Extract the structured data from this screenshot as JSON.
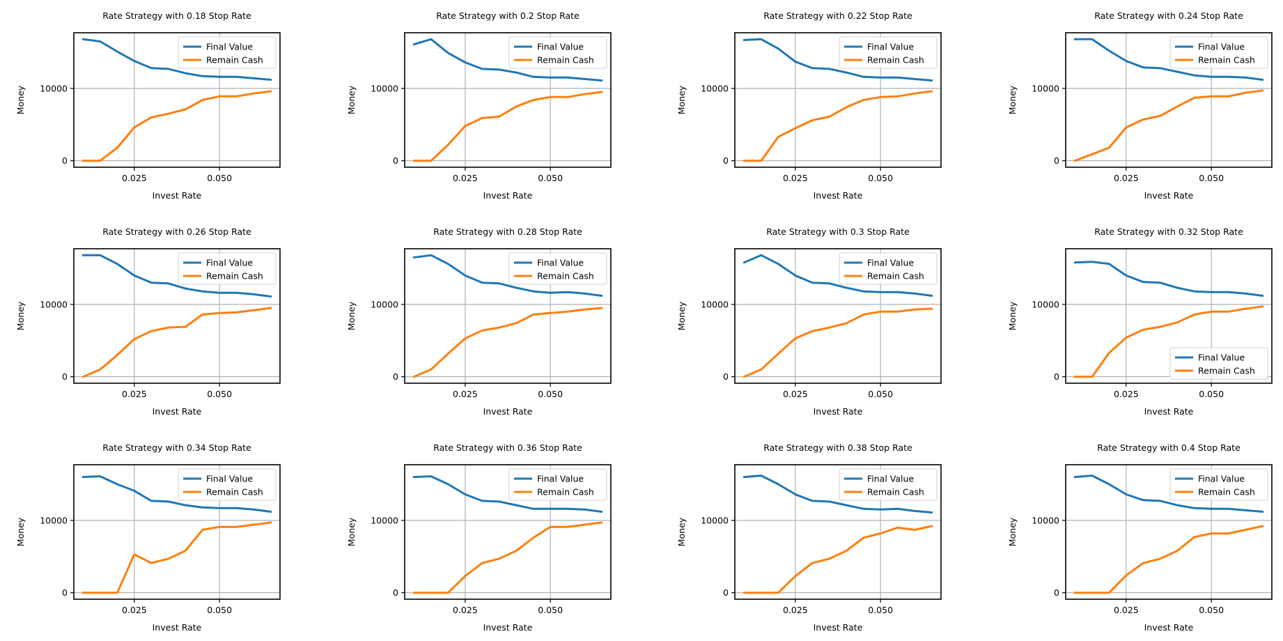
{
  "colors": {
    "final": "#1f77b4",
    "remain": "#ff7f0e",
    "grid": "#b0b0b0",
    "axis": "#000000"
  },
  "x": [
    0.01,
    0.015,
    0.02,
    0.025,
    0.03,
    0.035,
    0.04,
    0.045,
    0.05,
    0.055,
    0.06,
    0.065
  ],
  "chart_data": [
    {
      "type": "line",
      "title": "Rate Strategy with 0.18 Stop Rate",
      "xlabel": "Invest Rate",
      "ylabel": "Money",
      "xticks": [
        "0.025",
        "0.050"
      ],
      "yticks": [
        "0",
        "10000"
      ],
      "legend_loc": "upper right",
      "series": [
        {
          "name": "Final Value",
          "values": [
            16800,
            16500,
            15100,
            13800,
            12800,
            12700,
            12100,
            11700,
            11600,
            11600,
            11400,
            11200
          ]
        },
        {
          "name": "Remain Cash",
          "values": [
            0,
            0,
            1800,
            4600,
            6000,
            6500,
            7100,
            8400,
            8900,
            8900,
            9300,
            9600
          ]
        }
      ]
    },
    {
      "type": "line",
      "title": "Rate Strategy with 0.2 Stop Rate",
      "xlabel": "Invest Rate",
      "ylabel": "Money",
      "xticks": [
        "0.025",
        "0.050"
      ],
      "yticks": [
        "0",
        "10000"
      ],
      "legend_loc": "upper right",
      "series": [
        {
          "name": "Final Value",
          "values": [
            16100,
            16800,
            14900,
            13600,
            12700,
            12600,
            12200,
            11600,
            11500,
            11500,
            11300,
            11100
          ]
        },
        {
          "name": "Remain Cash",
          "values": [
            0,
            0,
            2200,
            4800,
            5900,
            6100,
            7500,
            8400,
            8800,
            8800,
            9200,
            9500
          ]
        }
      ]
    },
    {
      "type": "line",
      "title": "Rate Strategy with 0.22 Stop Rate",
      "xlabel": "Invest Rate",
      "ylabel": "Money",
      "xticks": [
        "0.025",
        "0.050"
      ],
      "yticks": [
        "0",
        "10000"
      ],
      "legend_loc": "upper right",
      "series": [
        {
          "name": "Final Value",
          "values": [
            16700,
            16800,
            15500,
            13700,
            12800,
            12700,
            12200,
            11600,
            11500,
            11500,
            11300,
            11100
          ]
        },
        {
          "name": "Remain Cash",
          "values": [
            0,
            0,
            3300,
            4500,
            5600,
            6100,
            7400,
            8400,
            8800,
            8900,
            9300,
            9600
          ]
        }
      ]
    },
    {
      "type": "line",
      "title": "Rate Strategy with 0.24 Stop Rate",
      "xlabel": "Invest Rate",
      "ylabel": "Money",
      "xticks": [
        "0.025",
        "0.050"
      ],
      "yticks": [
        "0",
        "10000"
      ],
      "legend_loc": "upper right",
      "series": [
        {
          "name": "Final Value",
          "values": [
            16800,
            16800,
            15200,
            13800,
            12900,
            12800,
            12300,
            11800,
            11600,
            11600,
            11500,
            11200
          ]
        },
        {
          "name": "Remain Cash",
          "values": [
            0,
            900,
            1800,
            4600,
            5700,
            6200,
            7500,
            8700,
            8900,
            8900,
            9400,
            9700
          ]
        }
      ]
    },
    {
      "type": "line",
      "title": "Rate Strategy with 0.26 Stop Rate",
      "xlabel": "Invest Rate",
      "ylabel": "Money",
      "xticks": [
        "0.025",
        "0.050"
      ],
      "yticks": [
        "0",
        "10000"
      ],
      "legend_loc": "upper right",
      "series": [
        {
          "name": "Final Value",
          "values": [
            16800,
            16800,
            15600,
            14000,
            13000,
            12900,
            12200,
            11800,
            11600,
            11600,
            11400,
            11100
          ]
        },
        {
          "name": "Remain Cash",
          "values": [
            0,
            1000,
            3000,
            5200,
            6300,
            6800,
            6900,
            8600,
            8800,
            8900,
            9200,
            9500
          ]
        }
      ]
    },
    {
      "type": "line",
      "title": "Rate Strategy with 0.28 Stop Rate",
      "xlabel": "Invest Rate",
      "ylabel": "Money",
      "xticks": [
        "0.025",
        "0.050"
      ],
      "yticks": [
        "0",
        "10000"
      ],
      "legend_loc": "upper right",
      "series": [
        {
          "name": "Final Value",
          "values": [
            16500,
            16800,
            15600,
            14000,
            13000,
            12900,
            12300,
            11800,
            11600,
            11700,
            11500,
            11200
          ]
        },
        {
          "name": "Remain Cash",
          "values": [
            0,
            1000,
            3200,
            5300,
            6400,
            6800,
            7400,
            8600,
            8800,
            9000,
            9300,
            9500
          ]
        }
      ]
    },
    {
      "type": "line",
      "title": "Rate Strategy with 0.3 Stop Rate",
      "xlabel": "Invest Rate",
      "ylabel": "Money",
      "xticks": [
        "0.025",
        "0.050"
      ],
      "yticks": [
        "0",
        "10000"
      ],
      "legend_loc": "upper right",
      "series": [
        {
          "name": "Final Value",
          "values": [
            15800,
            16800,
            15600,
            14000,
            13000,
            12900,
            12300,
            11800,
            11700,
            11700,
            11500,
            11200
          ]
        },
        {
          "name": "Remain Cash",
          "values": [
            0,
            1000,
            3200,
            5300,
            6300,
            6800,
            7400,
            8600,
            9000,
            9000,
            9300,
            9400
          ]
        }
      ]
    },
    {
      "type": "line",
      "title": "Rate Strategy with 0.32 Stop Rate",
      "xlabel": "Invest Rate",
      "ylabel": "Money",
      "xticks": [
        "0.025",
        "0.050"
      ],
      "yticks": [
        "0",
        "10000"
      ],
      "legend_loc": "lower right",
      "series": [
        {
          "name": "Final Value",
          "values": [
            15800,
            15900,
            15600,
            14000,
            13100,
            13000,
            12300,
            11800,
            11700,
            11700,
            11500,
            11200
          ]
        },
        {
          "name": "Remain Cash",
          "values": [
            0,
            0,
            3300,
            5400,
            6500,
            6900,
            7500,
            8600,
            9000,
            9000,
            9400,
            9700
          ]
        }
      ]
    },
    {
      "type": "line",
      "title": "Rate Strategy with 0.34 Stop Rate",
      "xlabel": "Invest Rate",
      "ylabel": "Money",
      "xticks": [
        "0.025",
        "0.050"
      ],
      "yticks": [
        "0",
        "10000"
      ],
      "legend_loc": "upper right",
      "series": [
        {
          "name": "Final Value",
          "values": [
            16000,
            16100,
            15000,
            14100,
            12700,
            12600,
            12100,
            11800,
            11700,
            11700,
            11500,
            11200
          ]
        },
        {
          "name": "Remain Cash",
          "values": [
            0,
            0,
            0,
            5300,
            4100,
            4700,
            5800,
            8700,
            9100,
            9100,
            9400,
            9700
          ]
        }
      ]
    },
    {
      "type": "line",
      "title": "Rate Strategy with 0.36 Stop Rate",
      "xlabel": "Invest Rate",
      "ylabel": "Money",
      "xticks": [
        "0.025",
        "0.050"
      ],
      "yticks": [
        "0",
        "10000"
      ],
      "legend_loc": "upper right",
      "series": [
        {
          "name": "Final Value",
          "values": [
            16000,
            16100,
            15000,
            13600,
            12700,
            12600,
            12100,
            11600,
            11600,
            11600,
            11500,
            11200
          ]
        },
        {
          "name": "Remain Cash",
          "values": [
            0,
            0,
            0,
            2300,
            4100,
            4700,
            5800,
            7600,
            9100,
            9100,
            9400,
            9700
          ]
        }
      ]
    },
    {
      "type": "line",
      "title": "Rate Strategy with 0.38 Stop Rate",
      "xlabel": "Invest Rate",
      "ylabel": "Money",
      "xticks": [
        "0.025",
        "0.050"
      ],
      "yticks": [
        "0",
        "10000"
      ],
      "legend_loc": "upper right",
      "series": [
        {
          "name": "Final Value",
          "values": [
            16000,
            16200,
            15000,
            13600,
            12700,
            12600,
            12100,
            11600,
            11500,
            11600,
            11300,
            11100
          ]
        },
        {
          "name": "Remain Cash",
          "values": [
            0,
            0,
            0,
            2300,
            4100,
            4700,
            5800,
            7600,
            8200,
            9000,
            8700,
            9200
          ]
        }
      ]
    },
    {
      "type": "line",
      "title": "Rate Strategy with 0.4 Stop Rate",
      "xlabel": "Invest Rate",
      "ylabel": "Money",
      "xticks": [
        "0.025",
        "0.050"
      ],
      "yticks": [
        "0",
        "10000"
      ],
      "legend_loc": "upper right",
      "series": [
        {
          "name": "Final Value",
          "values": [
            16000,
            16200,
            15000,
            13600,
            12800,
            12700,
            12100,
            11700,
            11600,
            11600,
            11400,
            11200
          ]
        },
        {
          "name": "Remain Cash",
          "values": [
            0,
            0,
            0,
            2400,
            4100,
            4700,
            5800,
            7700,
            8200,
            8200,
            8700,
            9200
          ]
        }
      ]
    }
  ]
}
